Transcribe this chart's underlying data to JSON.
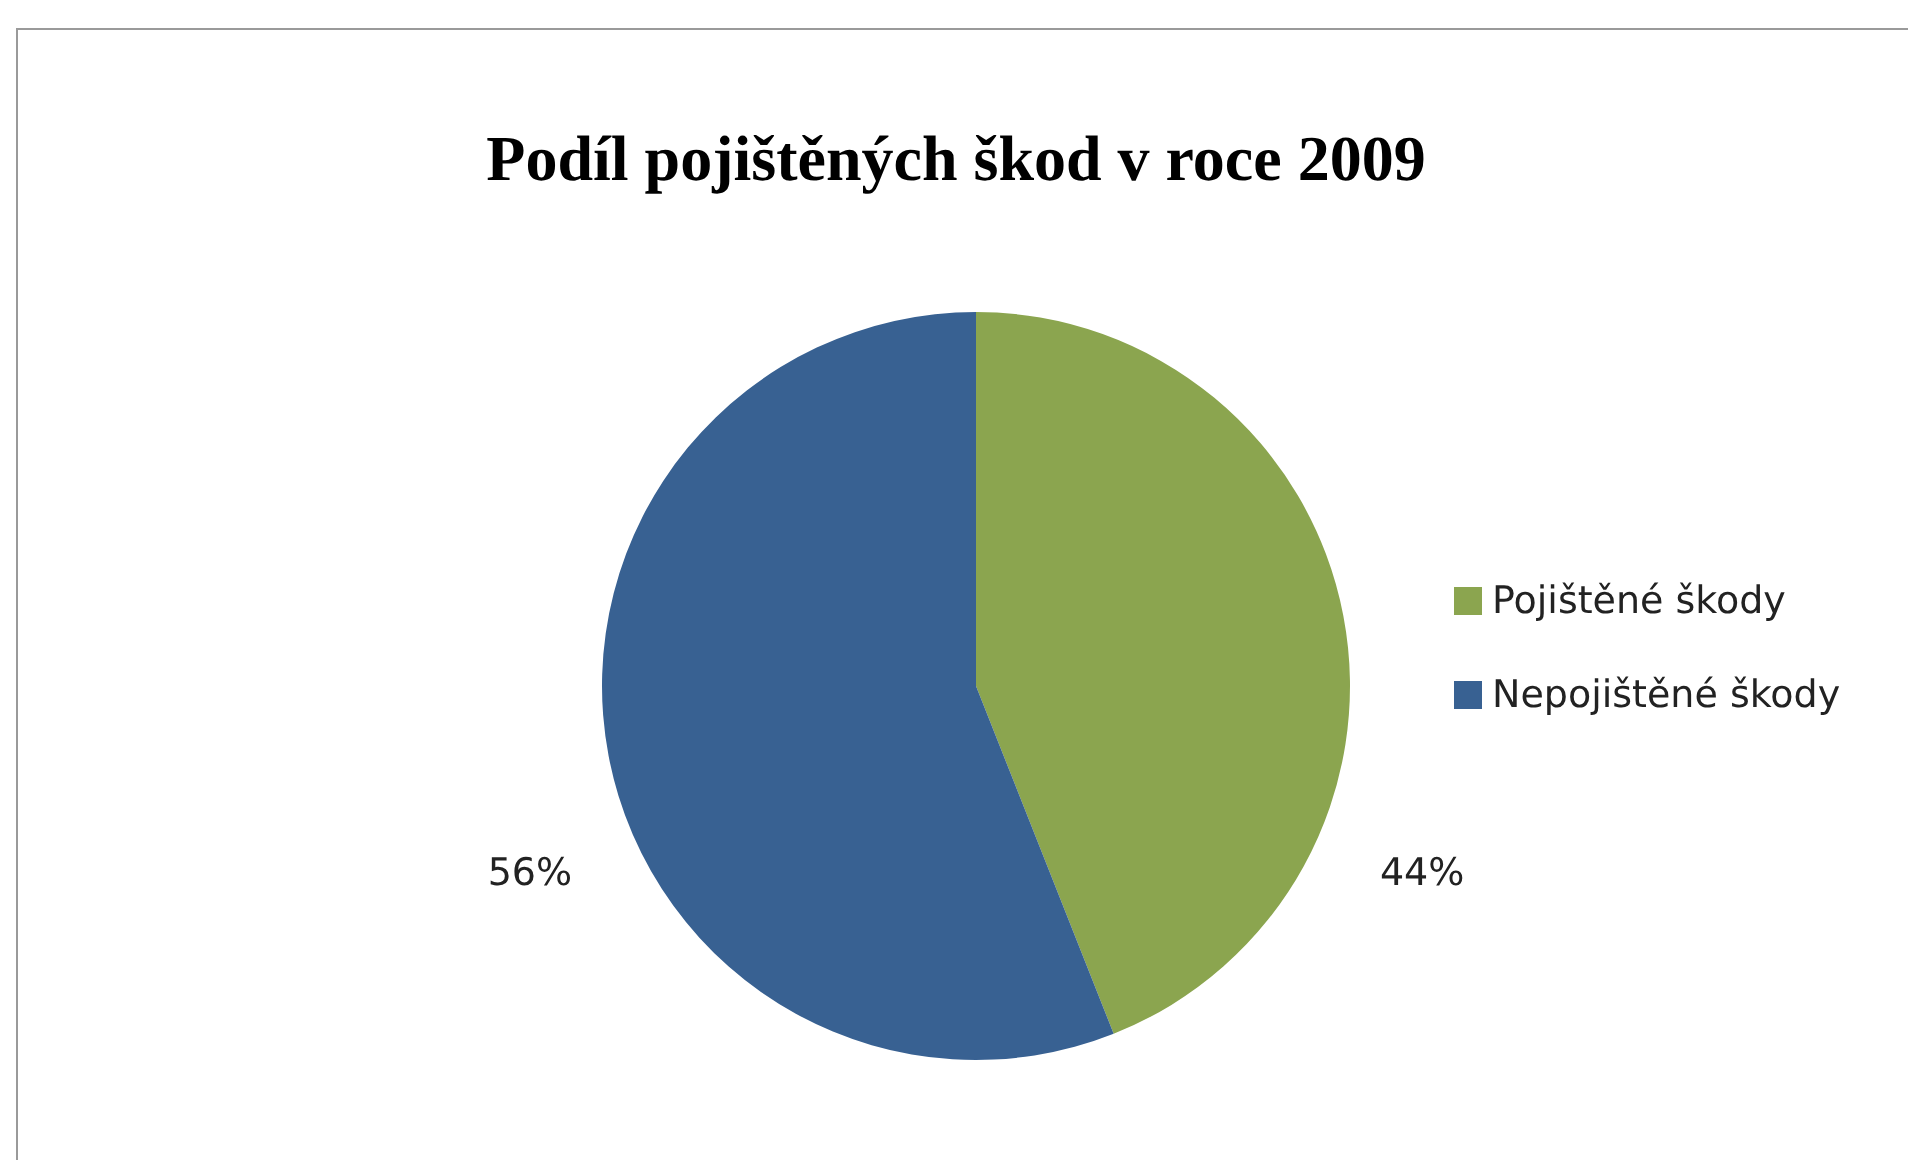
{
  "chart_data": {
    "type": "pie",
    "title": "Podíl pojištěných škod v roce 2009",
    "categories": [
      "Pojištěné škody",
      "Nepojištěné škody"
    ],
    "values": [
      44,
      56
    ],
    "colors": [
      "#8ba54f",
      "#386192"
    ],
    "value_labels": [
      "44%",
      "56%"
    ],
    "legend": "right"
  }
}
